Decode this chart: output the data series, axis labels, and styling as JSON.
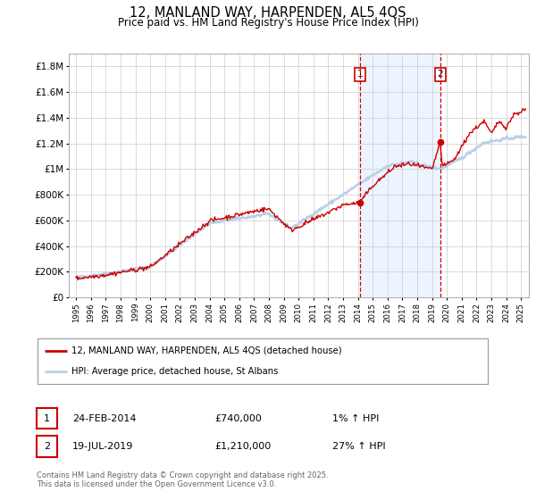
{
  "title": "12, MANLAND WAY, HARPENDEN, AL5 4QS",
  "subtitle": "Price paid vs. HM Land Registry's House Price Index (HPI)",
  "title_fontsize": 10.5,
  "subtitle_fontsize": 8.5,
  "xlim": [
    1994.5,
    2025.5
  ],
  "ylim": [
    0,
    1900000
  ],
  "yticks": [
    0,
    200000,
    400000,
    600000,
    800000,
    1000000,
    1200000,
    1400000,
    1600000,
    1800000
  ],
  "ytick_labels": [
    "£0",
    "£200K",
    "£400K",
    "£600K",
    "£800K",
    "£1M",
    "£1.2M",
    "£1.4M",
    "£1.6M",
    "£1.8M"
  ],
  "hpi_color": "#b8d0ea",
  "price_color": "#cc0000",
  "grid_color": "#cccccc",
  "background_color": "#ffffff",
  "marker1_date": 2014.13,
  "marker2_date": 2019.54,
  "marker1_price": 740000,
  "marker2_price": 1210000,
  "shade_color": "#ddeeff",
  "dashed_color": "#cc0000",
  "legend_label_red": "12, MANLAND WAY, HARPENDEN, AL5 4QS (detached house)",
  "legend_label_blue": "HPI: Average price, detached house, St Albans",
  "ann1_label": "1",
  "ann2_label": "2",
  "ann1_date_str": "24-FEB-2014",
  "ann1_price_str": "£740,000",
  "ann1_hpi_str": "1% ↑ HPI",
  "ann2_date_str": "19-JUL-2019",
  "ann2_price_str": "£1,210,000",
  "ann2_hpi_str": "27% ↑ HPI",
  "footer": "Contains HM Land Registry data © Crown copyright and database right 2025.\nThis data is licensed under the Open Government Licence v3.0."
}
